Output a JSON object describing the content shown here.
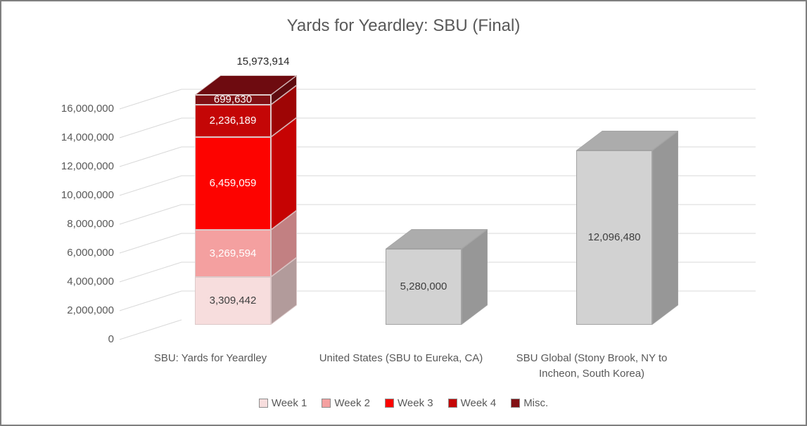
{
  "frame": {
    "border_color": "#7F7F7F",
    "background": "#FFFFFF"
  },
  "chart_data": {
    "type": "bar",
    "subtype": "3d-stacked-column",
    "title": "Yards for Yeardley: SBU (Final)",
    "text_color": "#595959",
    "gridline_color": "#D9D9D9",
    "grid": true,
    "legend_position": "bottom",
    "y_axis": {
      "min": 0,
      "max": 16000000,
      "step": 2000000,
      "tick_labels": [
        "0",
        "2,000,000",
        "4,000,000",
        "6,000,000",
        "8,000,000",
        "10,000,000",
        "12,000,000",
        "14,000,000",
        "16,000,000"
      ]
    },
    "categories": [
      "SBU: Yards for Yeardley",
      "United States (SBU to Eureka, CA)",
      "SBU Global (Stony Brook, NY to Incheon, South Korea)"
    ],
    "totals": [
      15973914,
      5280000,
      12096480
    ],
    "series": [
      {
        "name": "Week 1",
        "color": "#F7DDDD",
        "values": [
          3309442,
          null,
          null
        ]
      },
      {
        "name": "Week 2",
        "color": "#F4A0A0",
        "values": [
          3269594,
          null,
          null
        ]
      },
      {
        "name": "Week 3",
        "color": "#FD0300",
        "values": [
          6459059,
          null,
          null
        ]
      },
      {
        "name": "Week 4",
        "color": "#C40606",
        "values": [
          2236189,
          null,
          null
        ]
      },
      {
        "name": "Misc.",
        "color": "#811014",
        "values": [
          699630,
          null,
          null
        ]
      }
    ],
    "bars": [
      {
        "category": "SBU: Yards for Yeardley",
        "total": 15973914,
        "total_label": "15,973,914",
        "edge": "#DCC9C9",
        "segments": [
          {
            "name": "Week 1",
            "value": 3309442,
            "label": "3,309,442",
            "front": "#F7DDDD",
            "side": "#B29B9B",
            "label_color": "#3F3F3F"
          },
          {
            "name": "Week 2",
            "value": 3269594,
            "label": "3,269,594",
            "front": "#F4A0A0",
            "side": "#C28082",
            "label_color": "#FFFFFF"
          },
          {
            "name": "Week 3",
            "value": 6459059,
            "label": "6,459,059",
            "front": "#FD0300",
            "side": "#C60303",
            "label_color": "#FFFFFF"
          },
          {
            "name": "Week 4",
            "value": 2236189,
            "label": "2,236,189",
            "front": "#C40606",
            "side": "#9E0505",
            "label_color": "#FFFFFF"
          },
          {
            "name": "Misc.",
            "value": 699630,
            "label": "699,630",
            "front": "#811014",
            "side": "#5E0A0E",
            "top": "#6E0B10",
            "label_color": "#FFFFFF"
          }
        ]
      },
      {
        "category": "United States (SBU to Eureka, CA)",
        "total": 5280000,
        "edge": "#A3A3A3",
        "segments": [
          {
            "value": 5280000,
            "label": "5,280,000",
            "front": "#D2D2D2",
            "side": "#979797",
            "top": "#ACACAC",
            "label_color": "#3F3F3F"
          }
        ]
      },
      {
        "category": "SBU Global (Stony Brook, NY to Incheon, South Korea)",
        "total": 12096480,
        "edge": "#A3A3A3",
        "segments": [
          {
            "value": 12096480,
            "label": "12,096,480",
            "front": "#D2D2D2",
            "side": "#979797",
            "top": "#ACACAC",
            "label_color": "#3F3F3F"
          }
        ]
      }
    ],
    "legend": {
      "position": "bottom",
      "items": [
        {
          "label": "Week 1",
          "color": "#F7DDDD"
        },
        {
          "label": "Week 2",
          "color": "#F4A0A0"
        },
        {
          "label": "Week 3",
          "color": "#FD0300"
        },
        {
          "label": "Week 4",
          "color": "#C40606"
        },
        {
          "label": "Misc.",
          "color": "#811014"
        }
      ]
    }
  }
}
